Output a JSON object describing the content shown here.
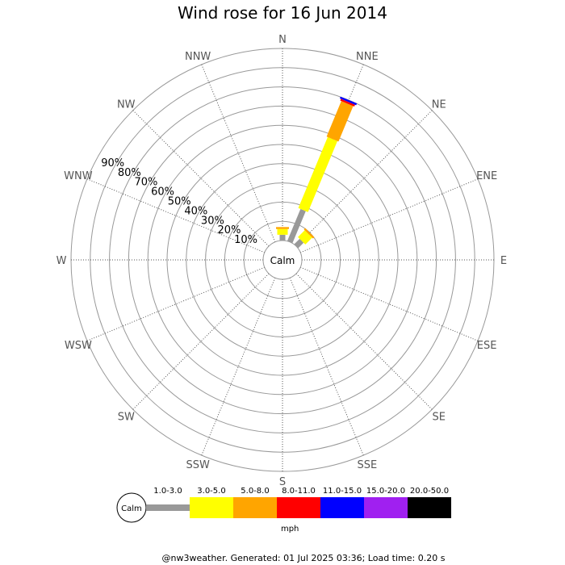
{
  "chart_data": {
    "type": "wind-rose",
    "title": "Wind rose for 16 Jun 2014",
    "directions": [
      "N",
      "NNE",
      "NE",
      "ENE",
      "E",
      "ESE",
      "SE",
      "SSE",
      "S",
      "SSW",
      "SW",
      "WSW",
      "W",
      "WNW",
      "NW",
      "NNW"
    ],
    "radial_ticks": [
      "10%",
      "20%",
      "30%",
      "40%",
      "50%",
      "60%",
      "70%",
      "80%",
      "90%"
    ],
    "radial_max": 100,
    "calm_label": "Calm",
    "speed_bins": [
      {
        "label": "1.0-3.0",
        "color": "#999999"
      },
      {
        "label": "3.0-5.0",
        "color": "#ffff00"
      },
      {
        "label": "5.0-8.0",
        "color": "#ffa500"
      },
      {
        "label": "8.0-11.0",
        "color": "#ff0000"
      },
      {
        "label": "11.0-15.0",
        "color": "#0000ff"
      },
      {
        "label": "15.0-20.0",
        "color": "#a020f0"
      },
      {
        "label": "20.0-50.0",
        "color": "#000000"
      }
    ],
    "petals": [
      {
        "direction": "N",
        "cumulative": [
          3,
          6,
          7
        ]
      },
      {
        "direction": "NNE",
        "cumulative": [
          18,
          58,
          78,
          79,
          80
        ]
      },
      {
        "direction": "NE",
        "cumulative": [
          4,
          9,
          10
        ]
      }
    ],
    "unit_label": "mph"
  },
  "footer": "@nw3weather. Generated: 01 Jul 2025 03:36; Load time: 0.20 s"
}
